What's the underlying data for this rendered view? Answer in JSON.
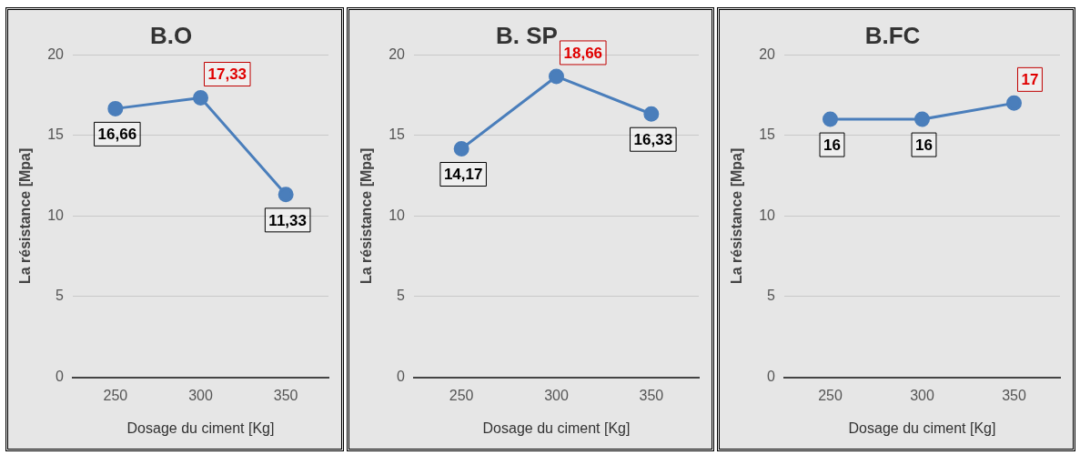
{
  "chart_data": [
    {
      "type": "line",
      "title": "B.O",
      "xlabel": "Dosage du ciment [Kg]",
      "ylabel": "La résistance [Mpa]",
      "categories": [
        "250",
        "300",
        "350"
      ],
      "series": [
        {
          "color": "#4a7ebb",
          "values": [
            16.66,
            17.33,
            11.33
          ],
          "value_labels": [
            "16,66",
            "17,33",
            "11,33"
          ]
        }
      ],
      "ylim": [
        0,
        20
      ],
      "yticks": [
        0,
        5,
        10,
        15,
        20
      ],
      "grid": "y",
      "legend": false,
      "marker": "circle"
    },
    {
      "type": "line",
      "title": "B. SP",
      "xlabel": "Dosage du ciment [Kg]",
      "ylabel": "La résistance [Mpa]",
      "categories": [
        "250",
        "300",
        "350"
      ],
      "series": [
        {
          "color": "#4a7ebb",
          "values": [
            14.17,
            18.66,
            16.33
          ],
          "value_labels": [
            "14,17",
            "18,66",
            "16,33"
          ]
        }
      ],
      "ylim": [
        0,
        20
      ],
      "yticks": [
        0,
        5,
        10,
        15,
        20
      ],
      "grid": "y",
      "legend": false,
      "marker": "circle"
    },
    {
      "type": "line",
      "title": "B.FC",
      "xlabel": "Dosage du ciment [Kg]",
      "ylabel": "La résistance [Mpa]",
      "categories": [
        "250",
        "300",
        "350"
      ],
      "series": [
        {
          "color": "#4a7ebb",
          "values": [
            16,
            16,
            17
          ],
          "value_labels": [
            "16",
            "16",
            "17"
          ]
        }
      ],
      "ylim": [
        0,
        20
      ],
      "yticks": [
        0,
        5,
        10,
        15,
        20
      ],
      "grid": "y",
      "legend": false,
      "marker": "circle"
    }
  ]
}
